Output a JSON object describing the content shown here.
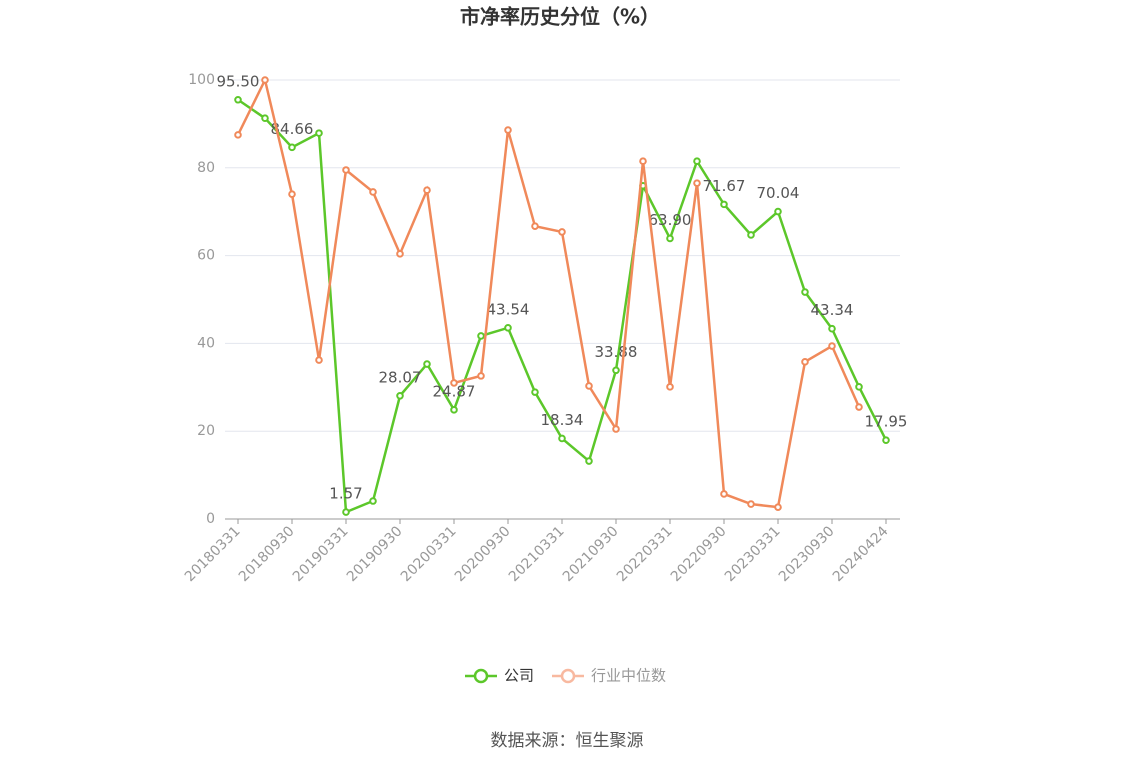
{
  "chart_data": {
    "type": "line",
    "title": "市净率历史分位（%）",
    "source": "数据来源：恒生聚源",
    "categories": [
      "20180331",
      null,
      "20180930",
      null,
      "20190331",
      null,
      "20190930",
      null,
      "20200331",
      null,
      "20200930",
      null,
      "20210331",
      null,
      "20210930",
      null,
      "20220331",
      null,
      "20220930",
      null,
      "20230331",
      null,
      "20230930",
      null,
      "20240424"
    ],
    "series": [
      {
        "name": "公司",
        "color": "#5cc72a",
        "values": [
          95.5,
          91.3,
          84.66,
          87.9,
          1.57,
          4.1,
          28.07,
          35.3,
          24.87,
          41.7,
          43.54,
          28.9,
          18.34,
          13.2,
          33.88,
          75.9,
          63.9,
          81.5,
          71.67,
          64.7,
          70.04,
          51.7,
          43.34,
          30.1,
          17.95
        ],
        "value_labels": [
          "95.50",
          null,
          "84.66",
          null,
          "1.57",
          null,
          "28.07",
          null,
          "24.87",
          null,
          "43.54",
          null,
          "18.34",
          null,
          "33.88",
          null,
          "63.90",
          null,
          "71.67",
          null,
          "70.04",
          null,
          "43.34",
          null,
          "17.95"
        ]
      },
      {
        "name": "行业中位数",
        "color": "#f0895a",
        "values": [
          87.5,
          100,
          74.0,
          36.2,
          79.5,
          74.5,
          60.4,
          74.9,
          31.0,
          32.6,
          88.6,
          66.7,
          65.4,
          30.3,
          20.5,
          81.5,
          30.1,
          76.5,
          5.7,
          3.4,
          2.7,
          35.8,
          39.4,
          25.5,
          null
        ]
      }
    ],
    "ylim": [
      0,
      100
    ],
    "yticks": [
      0,
      20,
      40,
      60,
      80,
      100
    ],
    "grid": true
  }
}
